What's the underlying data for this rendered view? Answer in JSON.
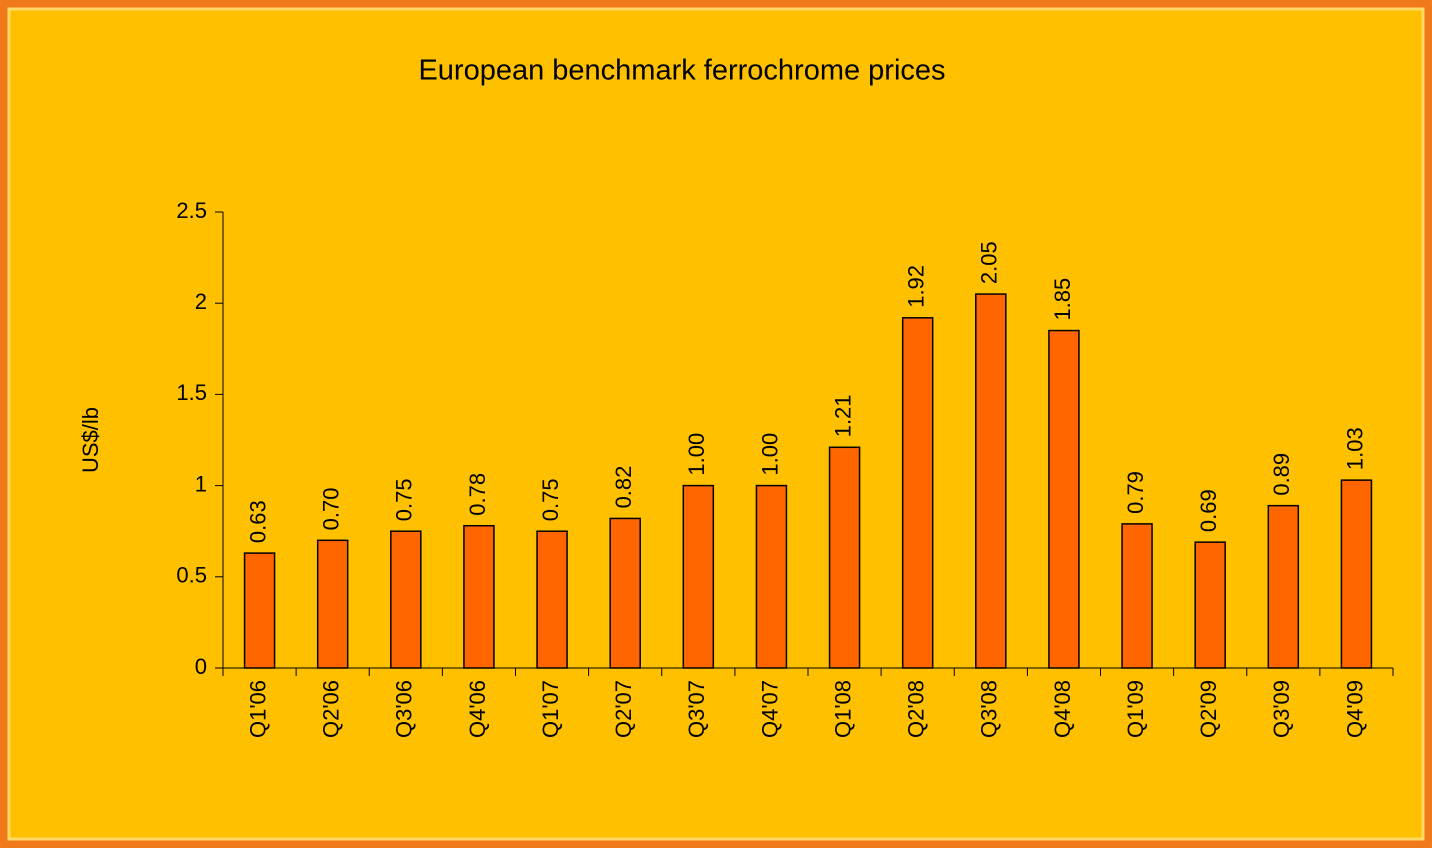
{
  "chart_data": {
    "type": "bar",
    "title": "European benchmark ferrochrome prices",
    "y_label": "US$/lb",
    "categories": [
      "Q1'06",
      "Q2'06",
      "Q3'06",
      "Q4'06",
      "Q1'07",
      "Q2'07",
      "Q3'07",
      "Q4'07",
      "Q1'08",
      "Q2'08",
      "Q3'08",
      "Q4'08",
      "Q1'09",
      "Q2'09",
      "Q3'09",
      "Q4'09"
    ],
    "values": [
      0.63,
      0.7,
      0.75,
      0.78,
      0.75,
      0.82,
      1.0,
      1.0,
      1.21,
      1.92,
      2.05,
      1.85,
      0.79,
      0.69,
      0.89,
      1.03
    ],
    "value_labels": [
      "0.63",
      "0.70",
      "0.75",
      "0.78",
      "0.75",
      "0.82",
      "1.00",
      "1.00",
      "1.21",
      "1.92",
      "2.05",
      "1.85",
      "0.79",
      "0.69",
      "0.89",
      "1.03"
    ],
    "color": "#ff6600",
    "ylim": [
      0,
      2.5
    ],
    "yticks": [
      0,
      0.5,
      1,
      1.5,
      2,
      2.5
    ],
    "grid": false
  }
}
